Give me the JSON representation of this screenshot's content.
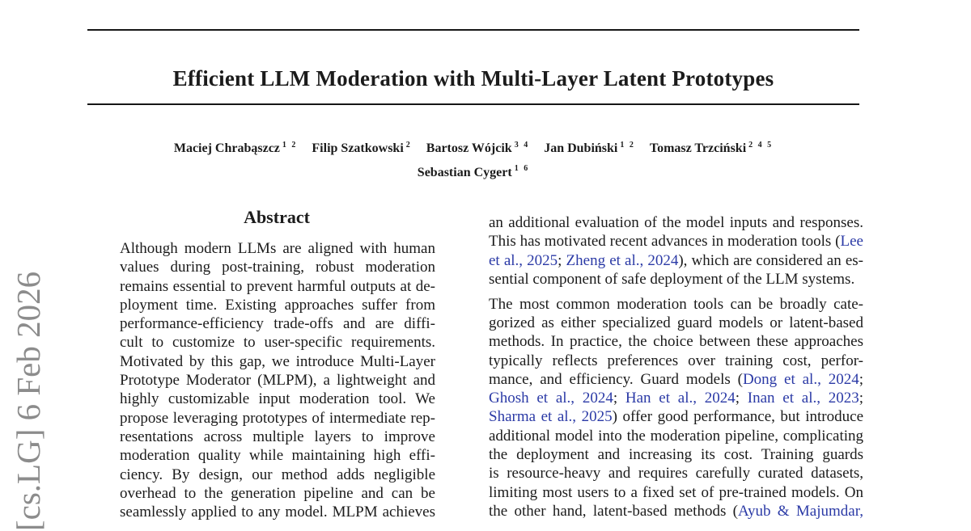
{
  "colors": {
    "text": "#1b1b1b",
    "citation_blue": "#2b3aa6",
    "stamp_gray": "#8c8c8c",
    "rule_black": "#161616"
  },
  "arxiv_stamp": {
    "text": "[cs.LG] 6 Feb 2026"
  },
  "header": {
    "title": "Efficient LLM Moderation with Multi-Layer Latent Prototypes",
    "author_lines": [
      [
        {
          "name": "Maciej Chrabąszcz",
          "sup": "1 2"
        },
        {
          "name": "Filip Szatkowski",
          "sup": "2"
        },
        {
          "name": "Bartosz Wójcik",
          "sup": "3 4"
        },
        {
          "name": "Jan Dubiński",
          "sup": "1 2"
        },
        {
          "name": "Tomasz Trzciński",
          "sup": "2 4 5"
        }
      ],
      [
        {
          "name": "Sebastian Cygert",
          "sup": "1 6"
        }
      ]
    ]
  },
  "abstract": {
    "heading": "Abstract",
    "lines": [
      "Although modern LLMs are aligned with human",
      "values during post-training, robust moderation",
      "remains essential to prevent harmful outputs at de-",
      "ployment time. Existing approaches suffer from",
      "performance-efficiency trade-offs and are diffi-",
      "cult to customize to user-specific requirements.",
      "Motivated by this gap, we introduce Multi-Layer",
      "Prototype Moderator (MLPM), a lightweight and",
      "highly customizable input moderation tool. We",
      "propose leveraging prototypes of intermediate rep-",
      "resentations across multiple layers to improve",
      "moderation quality while maintaining high effi-",
      "ciency. By design, our method adds negligible",
      "overhead to the generation pipeline and can be",
      "seamlessly applied to any model. MLPM achieves"
    ]
  },
  "right_column": {
    "paragraphs": [
      {
        "flush_last": true,
        "lines": [
          [
            {
              "t": "an additional evaluation of the model inputs and responses."
            }
          ],
          [
            {
              "t": "This has motivated recent advances in moderation tools ("
            },
            {
              "t": "Lee",
              "cite": true
            }
          ],
          [
            {
              "t": "et al., 2025",
              "cite": true
            },
            {
              "t": "; "
            },
            {
              "t": "Zheng et al., 2024",
              "cite": true
            },
            {
              "t": "), which are considered an es-"
            }
          ],
          [
            {
              "t": "sential component of safe deployment of the LLM systems."
            }
          ]
        ]
      },
      {
        "flush_last": false,
        "lines": [
          [
            {
              "t": "The most common moderation tools can be broadly cate-"
            }
          ],
          [
            {
              "t": "gorized as either specialized guard models or latent-based"
            }
          ],
          [
            {
              "t": "methods. In practice, the choice between these approaches"
            }
          ],
          [
            {
              "t": "typically reflects preferences over training cost, perfor-"
            }
          ],
          [
            {
              "t": "mance, and efficiency. Guard models ("
            },
            {
              "t": "Dong et al., 2024",
              "cite": true
            },
            {
              "t": ";"
            }
          ],
          [
            {
              "t": "Ghosh et al., 2024",
              "cite": true
            },
            {
              "t": "; "
            },
            {
              "t": "Han et al., 2024",
              "cite": true
            },
            {
              "t": "; "
            },
            {
              "t": "Inan et al., 2023",
              "cite": true
            },
            {
              "t": ";"
            }
          ],
          [
            {
              "t": "Sharma et al., 2025",
              "cite": true
            },
            {
              "t": ") offer good performance, but introduce"
            }
          ],
          [
            {
              "t": "additional model into the moderation pipeline, complicating"
            }
          ],
          [
            {
              "t": "the deployment and increasing its cost. Training guards"
            }
          ],
          [
            {
              "t": "is resource-heavy and requires carefully curated datasets,"
            }
          ],
          [
            {
              "t": "limiting most users to a fixed set of pre-trained models. On"
            }
          ],
          [
            {
              "t": "the other hand, latent-based methods ("
            },
            {
              "t": "Ayub & Majumdar,",
              "cite": true
            }
          ]
        ]
      }
    ]
  }
}
